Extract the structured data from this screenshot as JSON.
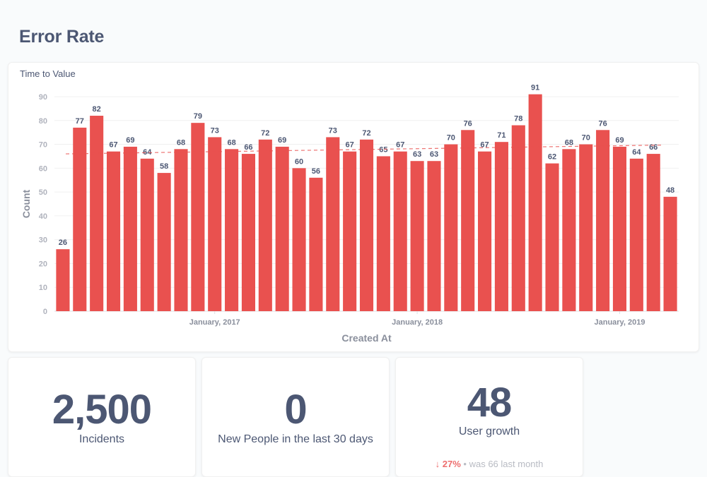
{
  "page": {
    "title": "Error Rate"
  },
  "chart_card": {
    "title": "Time to Value"
  },
  "chart_data": {
    "type": "bar",
    "title": "Time to Value",
    "xlabel": "Created At",
    "ylabel": "Count",
    "ylim": [
      0,
      90
    ],
    "y_ticks": [
      "0",
      "10",
      "20",
      "30",
      "40",
      "50",
      "60",
      "70",
      "80",
      "90"
    ],
    "x_tick_labels": [
      {
        "label": "January, 2017",
        "index": 9.5
      },
      {
        "label": "January, 2018",
        "index": 21.5
      },
      {
        "label": "January, 2019",
        "index": 33.5
      }
    ],
    "values": [
      26,
      77,
      82,
      67,
      69,
      64,
      58,
      68,
      79,
      73,
      68,
      66,
      72,
      69,
      60,
      56,
      73,
      67,
      72,
      65,
      67,
      63,
      63,
      70,
      76,
      67,
      71,
      78,
      91,
      62,
      68,
      70,
      76,
      69,
      64,
      66,
      48
    ],
    "trendline": {
      "start": 66,
      "end": 69.7
    },
    "bar_color": "#e9514f",
    "trend_color": "#e9514f",
    "grid": true
  },
  "metrics": [
    {
      "value": "2,500",
      "label": "Incidents"
    },
    {
      "value": "0",
      "label": "New People in the last 30 days"
    },
    {
      "value": "48",
      "label": "User growth",
      "change_arrow": "↓",
      "change_pct": "27%",
      "change_sep": "•",
      "change_text": "was 66 last month"
    }
  ]
}
